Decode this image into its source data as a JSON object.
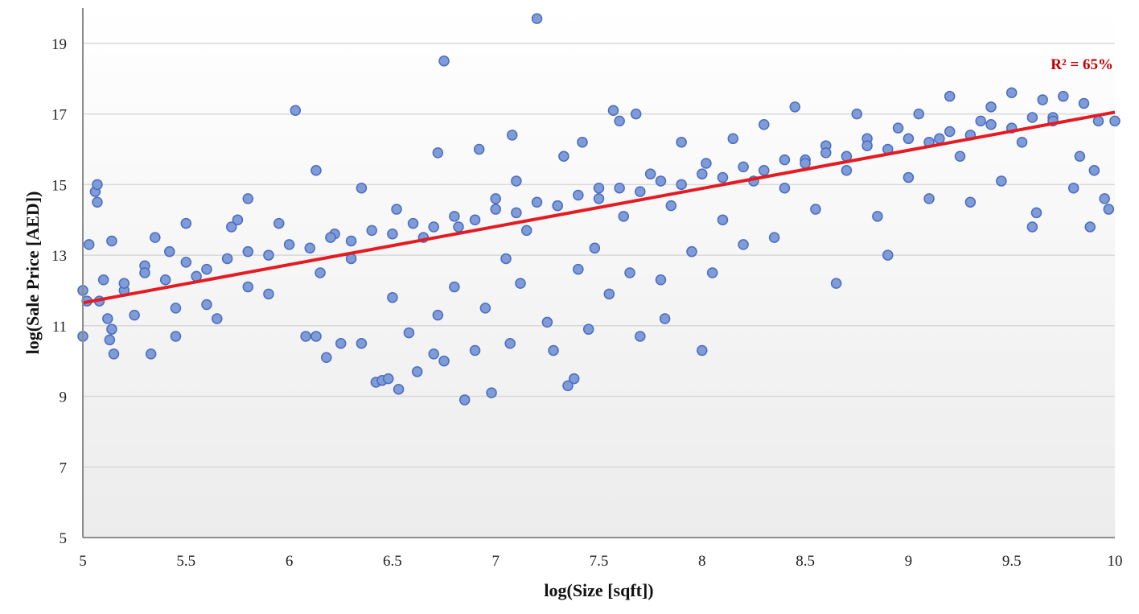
{
  "chart_data": {
    "type": "scatter",
    "title": "",
    "xlabel": "log(Size [sqft])",
    "ylabel": "log(Sale Price [AED])",
    "xlim": [
      5,
      10
    ],
    "ylim": [
      5,
      20
    ],
    "x_ticks": [
      "5",
      "5.5",
      "6",
      "6.5",
      "7",
      "7.5",
      "8",
      "8.5",
      "9",
      "9.5",
      "10"
    ],
    "y_ticks": [
      "5",
      "7",
      "9",
      "11",
      "13",
      "15",
      "17",
      "19"
    ],
    "grid": true,
    "legend": "none",
    "series": [
      {
        "points": [
          [
            5.0,
            12.0
          ],
          [
            5.0,
            10.7
          ],
          [
            5.02,
            11.7
          ],
          [
            5.03,
            13.3
          ],
          [
            5.06,
            14.8
          ],
          [
            5.07,
            15.0
          ],
          [
            5.07,
            14.5
          ],
          [
            5.08,
            11.7
          ],
          [
            5.1,
            12.3
          ],
          [
            5.12,
            11.2
          ],
          [
            5.13,
            10.6
          ],
          [
            5.14,
            13.4
          ],
          [
            5.14,
            10.9
          ],
          [
            5.15,
            10.2
          ],
          [
            5.2,
            12.0
          ],
          [
            5.25,
            11.3
          ],
          [
            5.3,
            12.7
          ],
          [
            5.33,
            10.2
          ],
          [
            5.35,
            13.5
          ],
          [
            5.42,
            13.1
          ],
          [
            5.45,
            11.5
          ],
          [
            5.45,
            10.7
          ],
          [
            5.5,
            13.9
          ],
          [
            5.55,
            12.4
          ],
          [
            5.6,
            11.6
          ],
          [
            5.65,
            11.2
          ],
          [
            5.72,
            13.8
          ],
          [
            5.75,
            14.0
          ],
          [
            5.8,
            12.1
          ],
          [
            5.8,
            14.6
          ],
          [
            5.9,
            11.9
          ],
          [
            5.95,
            13.9
          ],
          [
            6.03,
            17.1
          ],
          [
            6.08,
            10.7
          ],
          [
            6.13,
            10.7
          ],
          [
            6.13,
            15.4
          ],
          [
            6.15,
            12.5
          ],
          [
            6.18,
            10.1
          ],
          [
            6.22,
            13.6
          ],
          [
            6.25,
            10.5
          ],
          [
            6.3,
            12.9
          ],
          [
            6.35,
            10.5
          ],
          [
            6.35,
            14.9
          ],
          [
            6.42,
            9.4
          ],
          [
            6.45,
            9.45
          ],
          [
            6.48,
            9.5
          ],
          [
            6.5,
            11.8
          ],
          [
            6.52,
            14.3
          ],
          [
            6.53,
            9.2
          ],
          [
            6.58,
            10.8
          ],
          [
            6.62,
            9.7
          ],
          [
            6.65,
            13.5
          ],
          [
            6.7,
            10.2
          ],
          [
            6.72,
            11.3
          ],
          [
            6.72,
            15.9
          ],
          [
            6.75,
            18.5
          ],
          [
            6.75,
            10.0
          ],
          [
            6.8,
            12.1
          ],
          [
            6.82,
            13.8
          ],
          [
            6.85,
            8.9
          ],
          [
            6.9,
            10.3
          ],
          [
            6.92,
            16.0
          ],
          [
            6.95,
            11.5
          ],
          [
            6.98,
            9.1
          ],
          [
            7.0,
            14.6
          ],
          [
            7.05,
            12.9
          ],
          [
            7.07,
            10.5
          ],
          [
            7.08,
            16.4
          ],
          [
            7.1,
            15.1
          ],
          [
            7.12,
            12.2
          ],
          [
            7.15,
            13.7
          ],
          [
            7.2,
            19.7
          ],
          [
            7.25,
            11.1
          ],
          [
            7.28,
            10.3
          ],
          [
            7.3,
            14.4
          ],
          [
            7.33,
            15.8
          ],
          [
            7.35,
            9.3
          ],
          [
            7.38,
            9.5
          ],
          [
            7.4,
            12.6
          ],
          [
            7.42,
            16.2
          ],
          [
            7.45,
            10.9
          ],
          [
            7.48,
            13.2
          ],
          [
            7.5,
            14.9
          ],
          [
            7.55,
            11.9
          ],
          [
            7.57,
            17.1
          ],
          [
            7.6,
            16.8
          ],
          [
            7.62,
            14.1
          ],
          [
            7.65,
            12.5
          ],
          [
            7.68,
            17.0
          ],
          [
            7.7,
            10.7
          ],
          [
            7.75,
            15.3
          ],
          [
            7.8,
            12.3
          ],
          [
            7.82,
            11.2
          ],
          [
            7.85,
            14.4
          ],
          [
            7.9,
            16.2
          ],
          [
            7.95,
            13.1
          ],
          [
            8.0,
            10.3
          ],
          [
            8.02,
            15.6
          ],
          [
            8.05,
            12.5
          ],
          [
            8.1,
            14.0
          ],
          [
            8.15,
            16.3
          ],
          [
            8.2,
            13.3
          ],
          [
            8.25,
            15.1
          ],
          [
            8.3,
            16.7
          ],
          [
            8.35,
            13.5
          ],
          [
            8.4,
            14.9
          ],
          [
            8.45,
            17.2
          ],
          [
            8.5,
            15.7
          ],
          [
            8.55,
            14.3
          ],
          [
            8.6,
            16.1
          ],
          [
            8.65,
            12.2
          ],
          [
            8.7,
            15.4
          ],
          [
            8.75,
            17.0
          ],
          [
            8.8,
            16.3
          ],
          [
            8.85,
            14.1
          ],
          [
            8.9,
            13.0
          ],
          [
            8.95,
            16.6
          ],
          [
            9.0,
            15.2
          ],
          [
            9.05,
            17.0
          ],
          [
            9.1,
            14.6
          ],
          [
            9.15,
            16.3
          ],
          [
            9.2,
            17.5
          ],
          [
            9.25,
            15.8
          ],
          [
            9.3,
            14.5
          ],
          [
            9.35,
            16.8
          ],
          [
            9.4,
            17.2
          ],
          [
            9.45,
            15.1
          ],
          [
            9.5,
            17.6
          ],
          [
            9.55,
            16.2
          ],
          [
            9.6,
            13.8
          ],
          [
            9.62,
            14.2
          ],
          [
            9.65,
            17.4
          ],
          [
            9.7,
            16.9
          ],
          [
            9.75,
            17.5
          ],
          [
            9.8,
            14.9
          ],
          [
            9.83,
            15.8
          ],
          [
            9.85,
            17.3
          ],
          [
            9.88,
            13.8
          ],
          [
            9.9,
            15.4
          ],
          [
            9.92,
            16.8
          ],
          [
            9.95,
            14.6
          ],
          [
            9.97,
            14.3
          ],
          [
            10.0,
            16.8
          ],
          [
            5.2,
            12.2
          ],
          [
            5.3,
            12.5
          ],
          [
            5.4,
            12.3
          ],
          [
            5.5,
            12.8
          ],
          [
            5.6,
            12.6
          ],
          [
            5.7,
            12.9
          ],
          [
            5.8,
            13.1
          ],
          [
            5.9,
            13.0
          ],
          [
            6.0,
            13.3
          ],
          [
            6.1,
            13.2
          ],
          [
            6.2,
            13.5
          ],
          [
            6.3,
            13.4
          ],
          [
            6.4,
            13.7
          ],
          [
            6.5,
            13.6
          ],
          [
            6.6,
            13.9
          ],
          [
            6.7,
            13.8
          ],
          [
            6.8,
            14.1
          ],
          [
            6.9,
            14.0
          ],
          [
            7.0,
            14.3
          ],
          [
            7.1,
            14.2
          ],
          [
            7.2,
            14.5
          ],
          [
            7.3,
            14.4
          ],
          [
            7.4,
            14.7
          ],
          [
            7.5,
            14.6
          ],
          [
            7.6,
            14.9
          ],
          [
            7.7,
            14.8
          ],
          [
            7.8,
            15.1
          ],
          [
            7.9,
            15.0
          ],
          [
            8.0,
            15.3
          ],
          [
            8.1,
            15.2
          ],
          [
            8.2,
            15.5
          ],
          [
            8.3,
            15.4
          ],
          [
            8.4,
            15.7
          ],
          [
            8.5,
            15.6
          ],
          [
            8.6,
            15.9
          ],
          [
            8.7,
            15.8
          ],
          [
            8.8,
            16.1
          ],
          [
            8.9,
            16.0
          ],
          [
            9.0,
            16.3
          ],
          [
            9.1,
            16.2
          ],
          [
            9.2,
            16.5
          ],
          [
            9.3,
            16.4
          ],
          [
            9.4,
            16.7
          ],
          [
            9.5,
            16.6
          ],
          [
            9.6,
            16.9
          ],
          [
            9.7,
            16.8
          ]
        ]
      }
    ],
    "trendline": {
      "x": [
        5,
        10
      ],
      "y": [
        11.65,
        17.05
      ]
    },
    "annotation": "R² = 65%"
  },
  "colors": {
    "point_fill": "#7f9bd8",
    "point_stroke": "#4a6dbf",
    "trendline": "#e31c23",
    "annotation": "#c00000",
    "grid": "#d9d9d9",
    "axis": "#8c8c8c"
  }
}
